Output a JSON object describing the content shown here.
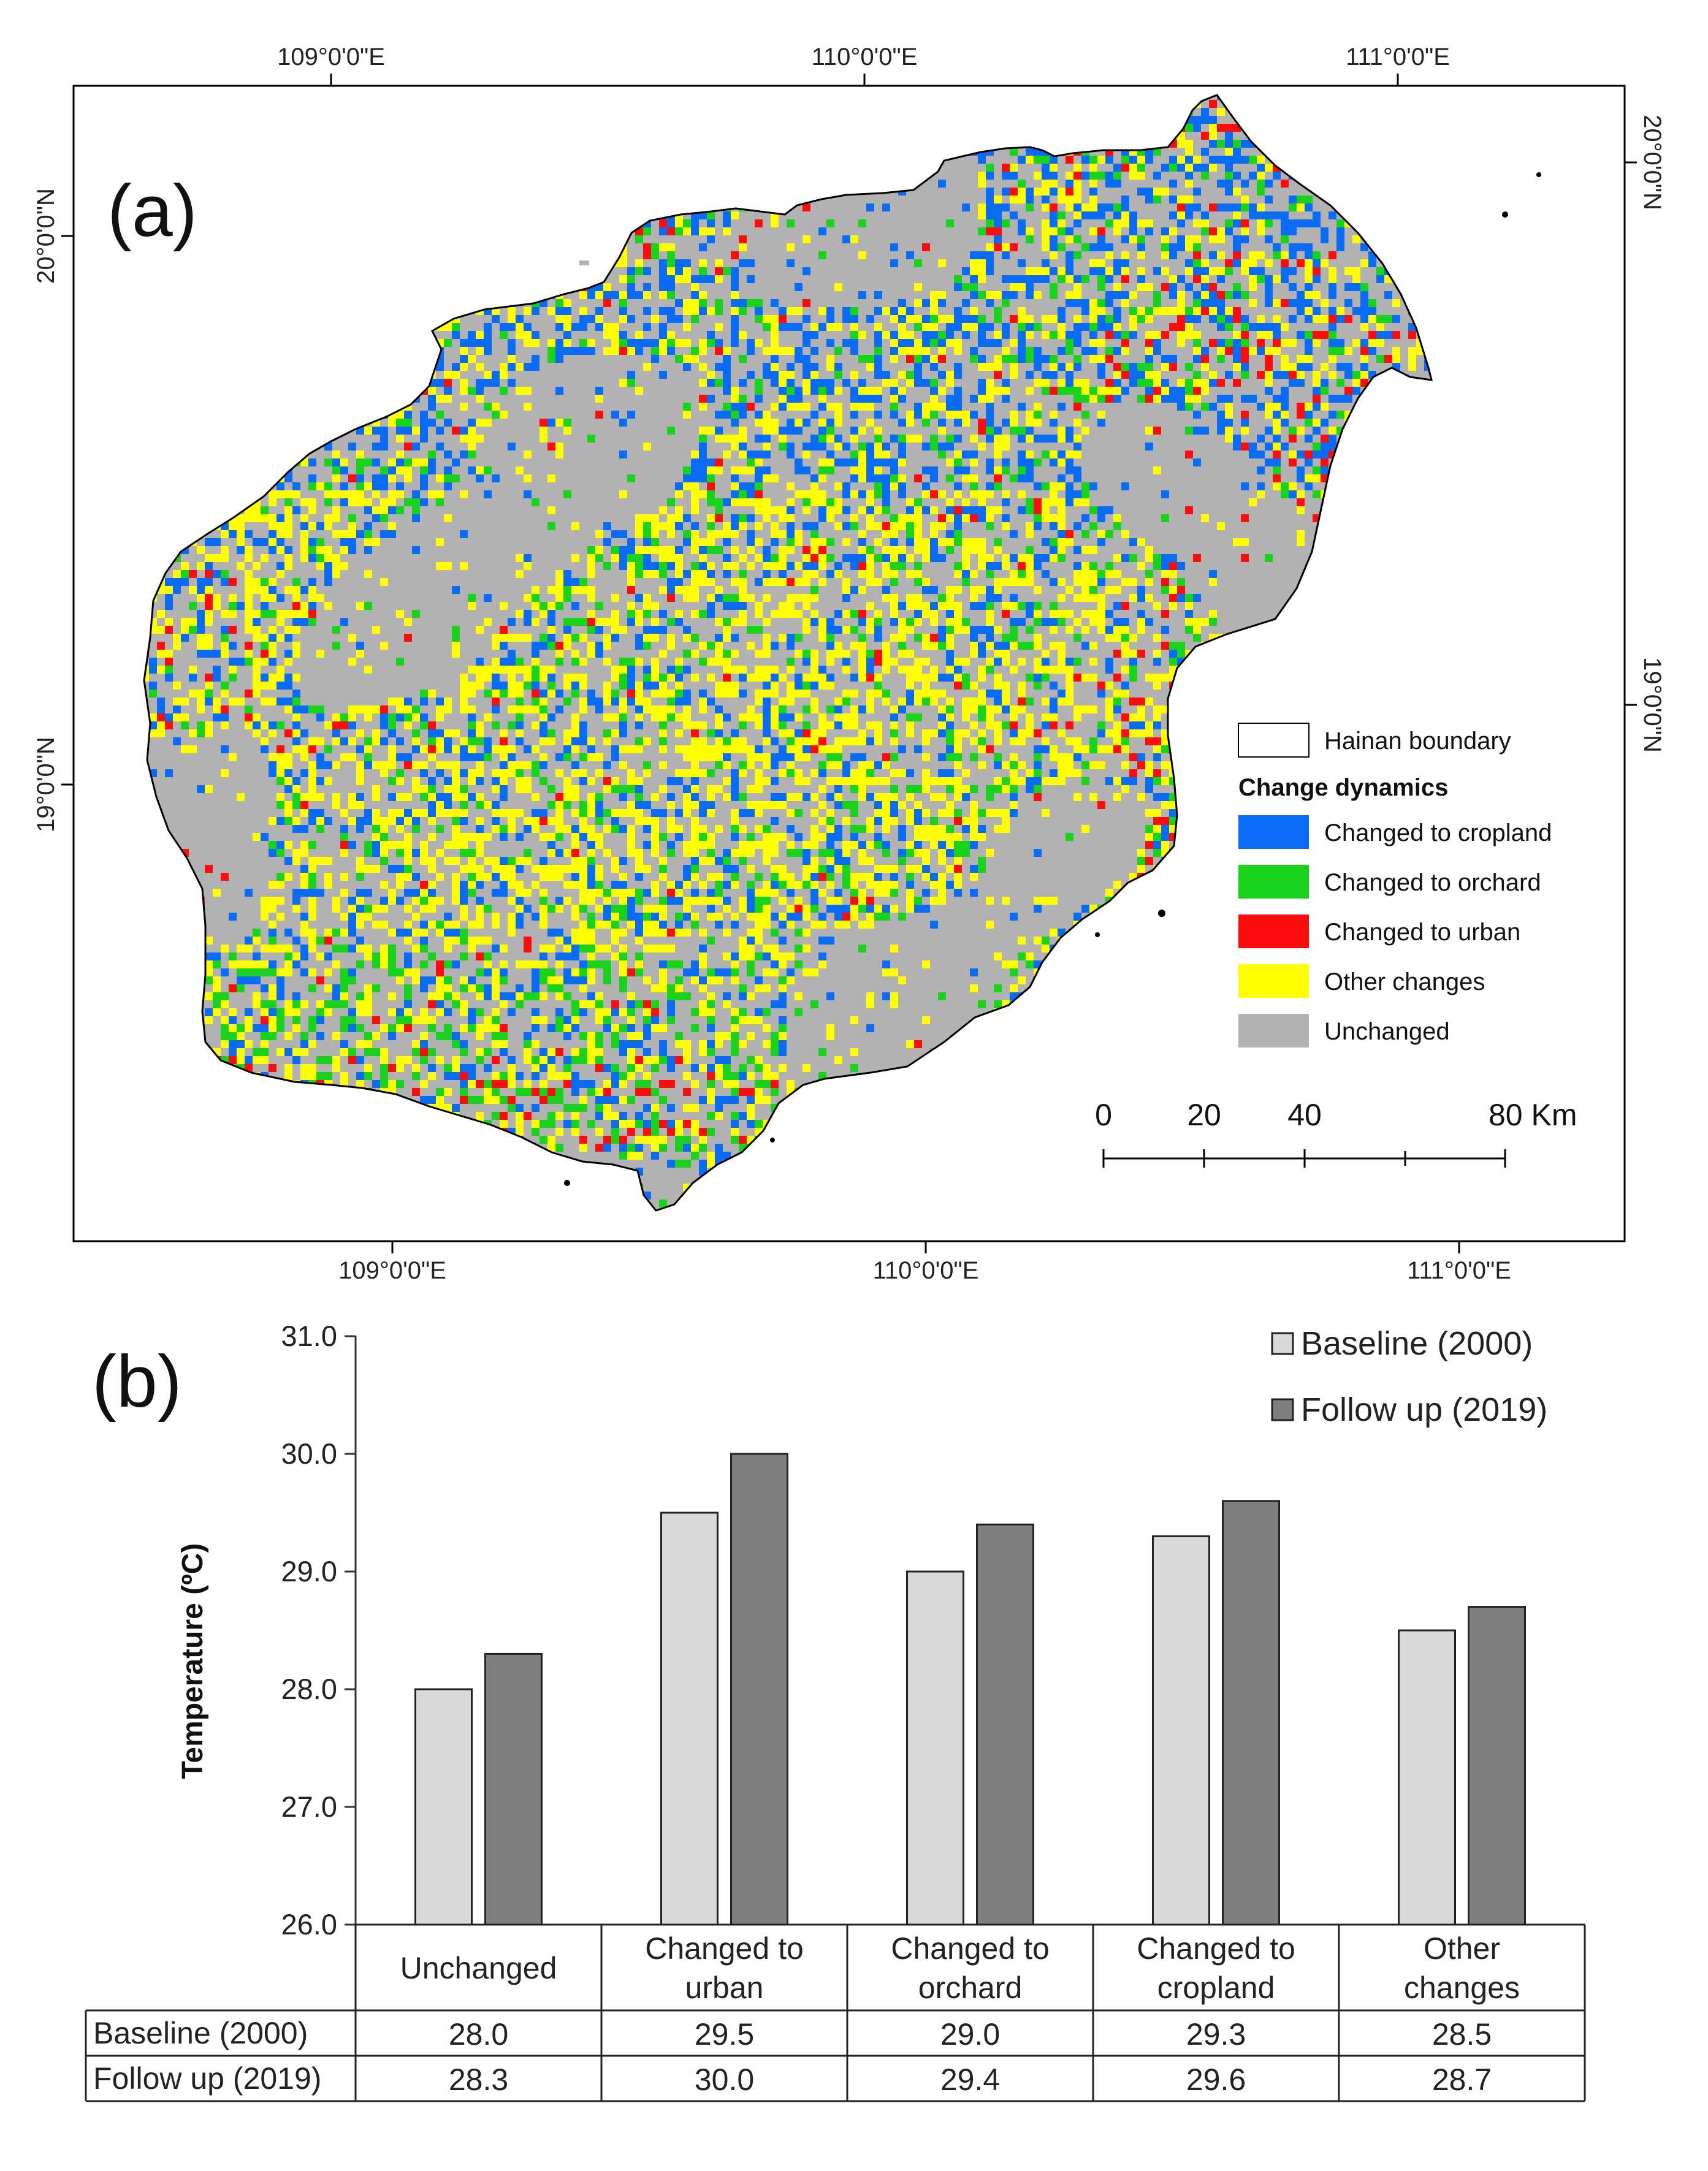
{
  "panel_a": {
    "label": "(a)",
    "lon_ticks_top": [
      "109°0'0\"E",
      "110°0'0\"E",
      "111°0'0\"E"
    ],
    "lon_ticks_bottom": [
      "109°0'0\"E",
      "110°0'0\"E",
      "111°0'0\"E"
    ],
    "lat_ticks_left": [
      "20°0'0\"N",
      "19°0'0\"N"
    ],
    "lat_ticks_right": [
      "20°0'0\"N",
      "19°0'0\"N"
    ],
    "legend": {
      "boundary_label": "Hainan boundary",
      "title": "Change dynamics",
      "items": [
        {
          "label": "Changed to cropland",
          "color": "#0a6cf5"
        },
        {
          "label": "Changed to orchard",
          "color": "#18d21b"
        },
        {
          "label": "Changed to urban",
          "color": "#fb0d0d"
        },
        {
          "label": "Other changes",
          "color": "#ffff00"
        },
        {
          "label": "Unchanged",
          "color": "#b2b2b2"
        }
      ]
    },
    "scale_bar": {
      "labels": [
        "0",
        "20",
        "40",
        "80 Km"
      ]
    }
  },
  "panel_b": {
    "label": "(b)",
    "colors": {
      "baseline": "#d9d9d9",
      "followup": "#7f7f7f"
    }
  },
  "chart_data": {
    "type": "bar",
    "ylabel": "Temperature (ºC)",
    "ylim": [
      26.0,
      31.0
    ],
    "yticks": [
      "26.0",
      "27.0",
      "28.0",
      "29.0",
      "30.0",
      "31.0"
    ],
    "categories": [
      "Unchanged",
      "Changed to urban",
      "Changed to orchard",
      "Changed to cropland",
      "Other changes"
    ],
    "category_lines": [
      [
        "Unchanged"
      ],
      [
        "Changed to",
        "urban"
      ],
      [
        "Changed to",
        "orchard"
      ],
      [
        "Changed to",
        "cropland"
      ],
      [
        "Other",
        "changes"
      ]
    ],
    "series": [
      {
        "name": "Baseline (2000)",
        "values": [
          28.0,
          29.5,
          29.0,
          29.3,
          28.5
        ],
        "labels": [
          "28.0",
          "29.5",
          "29.0",
          "29.3",
          "28.5"
        ]
      },
      {
        "name": "Follow up (2019)",
        "values": [
          28.3,
          30.0,
          29.4,
          29.6,
          28.7
        ],
        "labels": [
          "28.3",
          "30.0",
          "29.4",
          "29.6",
          "28.7"
        ]
      }
    ],
    "legend_position": "top-right"
  }
}
